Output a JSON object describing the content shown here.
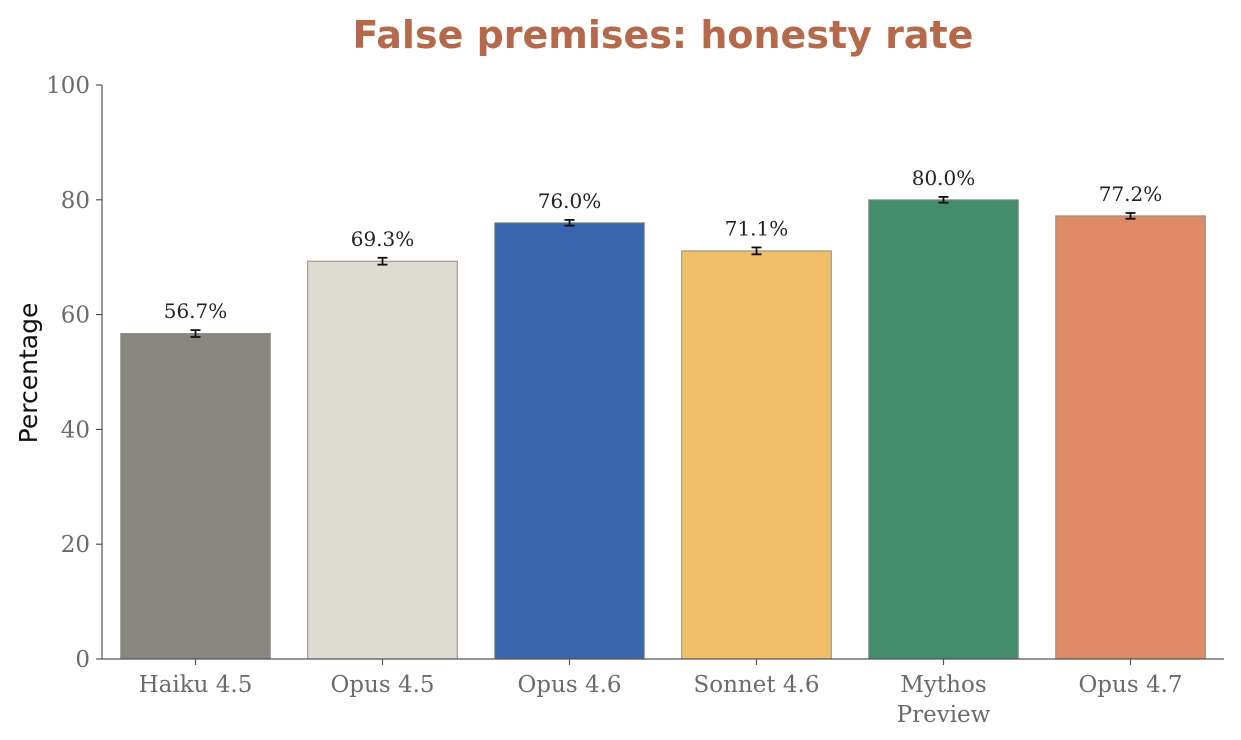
{
  "chart_data": {
    "type": "bar",
    "title": "False premises: honesty rate",
    "xlabel": "",
    "ylabel": "Percentage",
    "ylim": [
      0,
      100
    ],
    "yticks": [
      0,
      20,
      40,
      60,
      80,
      100
    ],
    "categories": [
      [
        "Haiku 4.5"
      ],
      [
        "Opus 4.5"
      ],
      [
        "Opus 4.6"
      ],
      [
        "Sonnet 4.6"
      ],
      [
        "Mythos",
        "Preview"
      ],
      [
        "Opus 4.7"
      ]
    ],
    "values": [
      56.7,
      69.3,
      76.0,
      71.1,
      80.0,
      77.2
    ],
    "value_labels": [
      "56.7%",
      "69.3%",
      "76.0%",
      "71.1%",
      "80.0%",
      "77.2%"
    ],
    "error": [
      0.6,
      0.6,
      0.5,
      0.6,
      0.5,
      0.5
    ],
    "colors": [
      "#878681",
      "#dedbd3",
      "#3865ab",
      "#efbf69",
      "#438c6e",
      "#de8a69"
    ],
    "grid": false,
    "legend": "none"
  }
}
